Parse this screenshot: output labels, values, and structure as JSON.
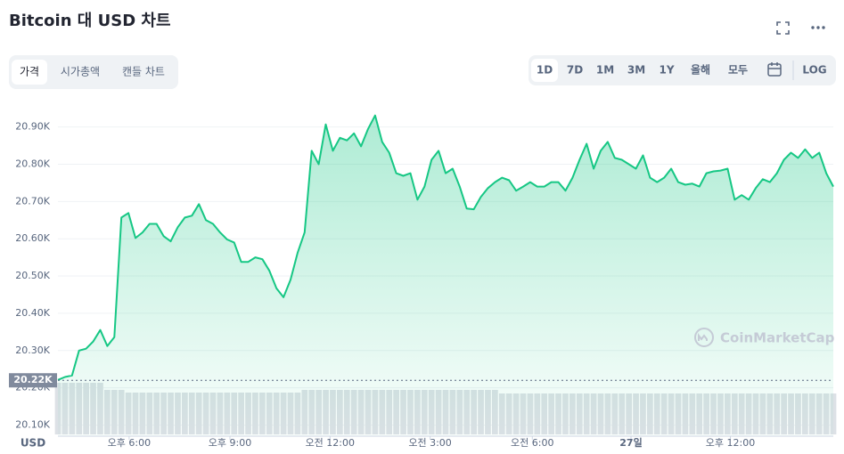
{
  "chart_data": {
    "type": "area",
    "title": "Bitcoin 대 USD 차트",
    "tabs": [
      "가격",
      "시가총액",
      "캔들 차트"
    ],
    "active_tab": 0,
    "ranges": [
      "1D",
      "7D",
      "1M",
      "3M",
      "1Y",
      "올해",
      "모두"
    ],
    "active_range": 0,
    "log_button": "LOG",
    "log_scale": false,
    "axis_unit": "USD",
    "watermark": "CoinMarketCap",
    "color": "#16c784",
    "grid": true,
    "values": [
      20221,
      20229,
      20233,
      20300,
      20305,
      20324,
      20355,
      20312,
      20336,
      20657,
      20669,
      20602,
      20617,
      20640,
      20640,
      20607,
      20593,
      20631,
      20657,
      20662,
      20693,
      20650,
      20640,
      20617,
      20598,
      20590,
      20538,
      20538,
      20550,
      20545,
      20514,
      20467,
      20443,
      20490,
      20562,
      20617,
      20836,
      20800,
      20907,
      20836,
      20871,
      20864,
      20883,
      20848,
      20895,
      20931,
      20860,
      20831,
      20776,
      20769,
      20776,
      20705,
      20740,
      20812,
      20836,
      20776,
      20788,
      20740,
      20681,
      20679,
      20712,
      20736,
      20752,
      20764,
      20757,
      20729,
      20740,
      20752,
      20740,
      20740,
      20752,
      20752,
      20729,
      20764,
      20812,
      20855,
      20788,
      20836,
      20860,
      20817,
      20812,
      20800,
      20788,
      20824,
      20764,
      20752,
      20764,
      20788,
      20752,
      20745,
      20748,
      20740,
      20776,
      20781,
      20783,
      20788,
      20705,
      20717,
      20705,
      20736,
      20760,
      20752,
      20776,
      20812,
      20831,
      20817,
      20840,
      20817,
      20831,
      20776,
      20740
    ],
    "volume": {
      "color": "#dde1e6",
      "axis": "y2",
      "values": [
        58,
        58,
        58,
        58,
        58,
        58,
        58,
        50,
        50,
        50,
        47,
        47,
        47,
        47,
        47,
        47,
        47,
        47,
        47,
        47,
        47,
        47,
        47,
        47,
        47,
        47,
        47,
        47,
        47,
        47,
        47,
        47,
        47,
        47,
        47,
        50,
        50,
        50,
        50,
        50,
        50,
        50,
        50,
        50,
        50,
        50,
        50,
        50,
        50,
        50,
        50,
        50,
        50,
        50,
        50,
        50,
        50,
        50,
        50,
        50,
        50,
        50,
        50,
        46,
        46,
        46,
        46,
        46,
        46,
        46,
        46,
        46,
        46,
        46,
        46,
        46,
        46,
        46,
        46,
        46,
        46,
        46,
        46,
        46,
        46,
        46,
        46,
        46,
        46,
        46,
        46,
        46,
        46,
        46,
        46,
        46,
        46,
        46,
        46,
        46,
        46,
        46,
        46,
        46,
        46,
        46,
        46,
        46,
        46,
        46,
        46
      ]
    },
    "xlim": [
      0,
      110
    ],
    "xticks": [
      {
        "value": 10.1,
        "label": "오후 6:00"
      },
      {
        "value": 24.4,
        "label": "오후 9:00"
      },
      {
        "value": 38.6,
        "label": "오전 12:00"
      },
      {
        "value": 52.8,
        "label": "오전 3:00"
      },
      {
        "value": 67.3,
        "label": "오전 6:00"
      },
      {
        "value": 81.3,
        "label": "27일"
      },
      {
        "value": 95.4,
        "label": "오후 12:00"
      }
    ],
    "ylim": [
      20070,
      20990
    ],
    "yticks": [
      {
        "value": 20100,
        "label": "20.10K"
      },
      {
        "value": 20200,
        "label": "20.20K"
      },
      {
        "value": 20300,
        "label": "20.30K"
      },
      {
        "value": 20400,
        "label": "20.40K"
      },
      {
        "value": 20500,
        "label": "20.50K"
      },
      {
        "value": 20600,
        "label": "20.60K"
      },
      {
        "value": 20700,
        "label": "20.70K"
      },
      {
        "value": 20800,
        "label": "20.80K"
      },
      {
        "value": 20900,
        "label": "20.90K"
      }
    ],
    "y2lim": [
      0,
      60
    ],
    "current_price": {
      "value": 20220,
      "label": "20.22K"
    }
  }
}
